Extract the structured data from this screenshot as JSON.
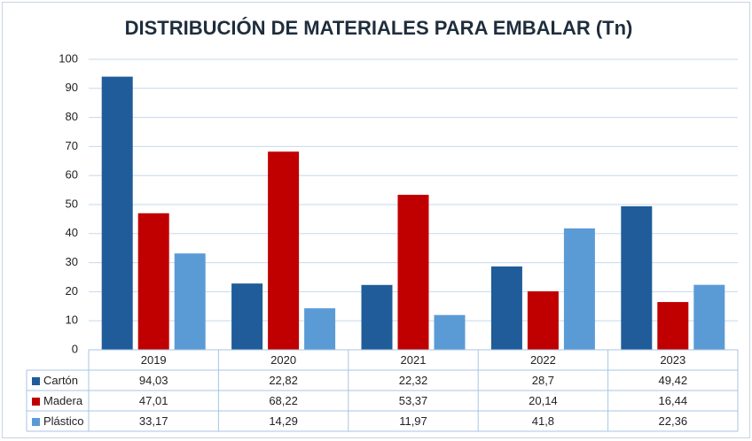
{
  "chart_data": {
    "type": "bar",
    "title": "DISTRIBUCIÓN DE MATERIALES PARA EMBALAR (Tn)",
    "categories": [
      "2019",
      "2020",
      "2021",
      "2022",
      "2023"
    ],
    "series": [
      {
        "name": "Cartón",
        "color": "#1f5c99",
        "values": [
          94.03,
          22.82,
          22.32,
          28.7,
          49.42
        ],
        "value_labels": [
          "94,03",
          "22,82",
          "22,32",
          "28,7",
          "49,42"
        ]
      },
      {
        "name": "Madera",
        "color": "#c00000",
        "values": [
          47.01,
          68.22,
          53.37,
          20.14,
          16.44
        ],
        "value_labels": [
          "47,01",
          "68,22",
          "53,37",
          "20,14",
          "16,44"
        ]
      },
      {
        "name": "Plástico",
        "color": "#5b9bd5",
        "values": [
          33.17,
          14.29,
          11.97,
          41.8,
          22.36
        ],
        "value_labels": [
          "33,17",
          "14,29",
          "11,97",
          "41,8",
          "22,36"
        ]
      }
    ],
    "ylim": [
      0,
      100
    ],
    "yticks": [
      0,
      10,
      20,
      30,
      40,
      50,
      60,
      70,
      80,
      90,
      100
    ],
    "grid": true
  }
}
